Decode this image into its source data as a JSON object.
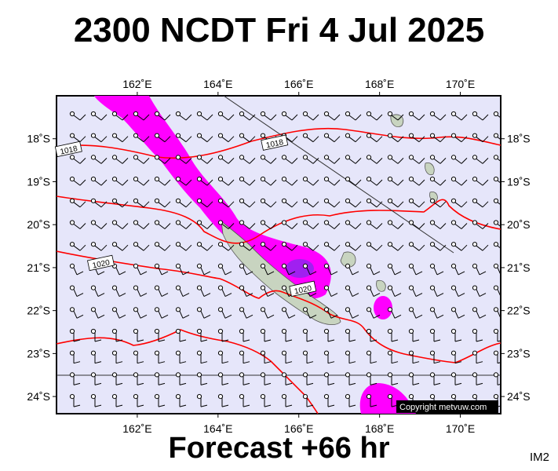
{
  "title": "2300 NCDT Fri 4 Jul 2025",
  "footer": "Forecast +66 hr",
  "model_tag": "IM2",
  "copyright": "Copyright metvuw.com",
  "map": {
    "lon_range": [
      160.0,
      171.0
    ],
    "lat_range": [
      -24.4,
      -17.0
    ],
    "lon_ticks": [
      {
        "value": 162,
        "label": "162˚E"
      },
      {
        "value": 164,
        "label": "164˚E"
      },
      {
        "value": 166,
        "label": "166˚E"
      },
      {
        "value": 168,
        "label": "168˚E"
      },
      {
        "value": 170,
        "label": "170˚E"
      }
    ],
    "lat_ticks": [
      {
        "value": -18,
        "label": "18˚S"
      },
      {
        "value": -19,
        "label": "19˚S"
      },
      {
        "value": -20,
        "label": "20˚S"
      },
      {
        "value": -21,
        "label": "21˚S"
      },
      {
        "value": -22,
        "label": "22˚S"
      },
      {
        "value": -23,
        "label": "23˚S"
      },
      {
        "value": -24,
        "label": "24˚S"
      }
    ],
    "isobar_labels": [
      {
        "text": "1018",
        "lon": 160.3,
        "lat": -18.25
      },
      {
        "text": "1018",
        "lon": 165.4,
        "lat": -18.1
      },
      {
        "text": "1020",
        "lon": 161.1,
        "lat": -20.9
      },
      {
        "text": "1020",
        "lon": 166.1,
        "lat": -21.5
      }
    ],
    "colors": {
      "ocean": "#e6e6fa",
      "isobar": "#ff0000",
      "rain_heavy": "#ff00ff",
      "rain_core": "#a020f0",
      "land": "#c8d4c0",
      "barb": "#000000"
    }
  }
}
